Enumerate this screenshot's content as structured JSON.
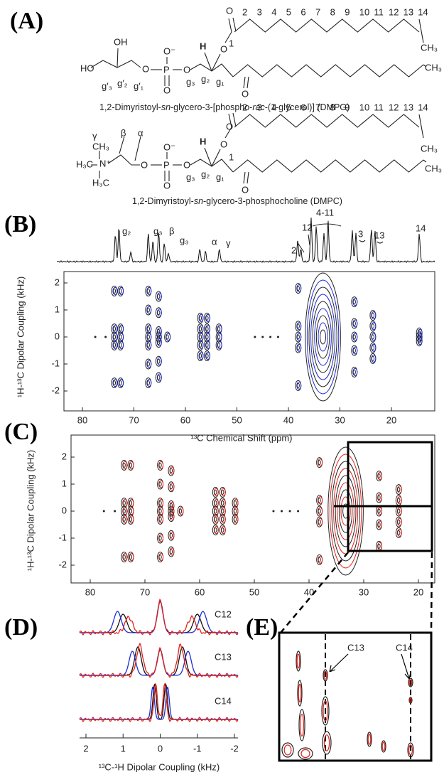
{
  "panel_labels": {
    "a": "(A)",
    "b": "(B)",
    "c": "(C)",
    "d": "(D)",
    "e": "(E)"
  },
  "dmpg": {
    "chain_numbers": [
      "2",
      "3",
      "4",
      "5",
      "6",
      "7",
      "8",
      "9",
      "10",
      "11",
      "12",
      "13",
      "14"
    ],
    "carbonyl_number": "1",
    "terminal_1": "CH₃",
    "terminal_2": "CH₃",
    "atoms": [
      "HO",
      "OH",
      "O",
      "O⁻",
      "P",
      "O",
      "O",
      "H",
      "O",
      "O",
      "O"
    ],
    "glycerol_labels": [
      "g′₃",
      "g′₂",
      "g′₁",
      "g₃",
      "g₂",
      "g₁"
    ],
    "caption": [
      "1,2-Dimyristoyl-",
      "sn",
      "-glycero-3-[phospho-",
      "rac",
      "-(1-glycerol)] (DMPG)"
    ]
  },
  "dmpc": {
    "chain_numbers": [
      "2",
      "3",
      "4",
      "5",
      "6",
      "7",
      "8",
      "9",
      "10",
      "11",
      "12",
      "13",
      "14"
    ],
    "carbonyl_number": "1",
    "terminal_1": "CH₃",
    "terminal_2": "CH₃",
    "headgroup_labels": [
      "γ",
      "β",
      "α"
    ],
    "atoms": [
      "CH₃",
      "H₃C",
      "N⁺",
      "H₃C",
      "O",
      "O⁻",
      "P",
      "O",
      "O",
      "H",
      "O",
      "O",
      "O"
    ],
    "glycerol_labels": [
      "g₃",
      "g₂",
      "g₁"
    ],
    "caption": [
      "1,2-Dimyristoyl-",
      "sn",
      "-glycero-3-phosphocholine (DMPC)"
    ]
  },
  "spectrum_1d": {
    "peak_labels": [
      "g₂",
      "g₃",
      "β",
      "g₃",
      "α",
      "γ",
      "2",
      "12",
      "4-11",
      "3",
      "13",
      "14"
    ]
  },
  "panel_b": {
    "y_label": "¹H-¹³C Dipolar Coupling (kHz)",
    "x_label": "¹³C Chemical Shift (ppm)",
    "xticks": [
      80,
      70,
      60,
      50,
      40,
      30,
      20
    ],
    "yticks": [
      2,
      1,
      0,
      -1,
      -2
    ]
  },
  "panel_c": {
    "y_label": "¹H-¹³C Dipolar Coupling (kHz)",
    "xticks": [
      80,
      70,
      60,
      50,
      40,
      30,
      20
    ],
    "yticks": [
      2,
      1,
      0,
      -1,
      -2
    ]
  },
  "panel_d": {
    "trace_labels": [
      "C12",
      "C13",
      "C14"
    ],
    "xticks": [
      2,
      1,
      0,
      -1,
      -2
    ],
    "x_label": "¹³C-¹H Dipolar Coupling (kHz)"
  },
  "panel_e": {
    "labels": [
      "C13",
      "C14"
    ]
  }
}
